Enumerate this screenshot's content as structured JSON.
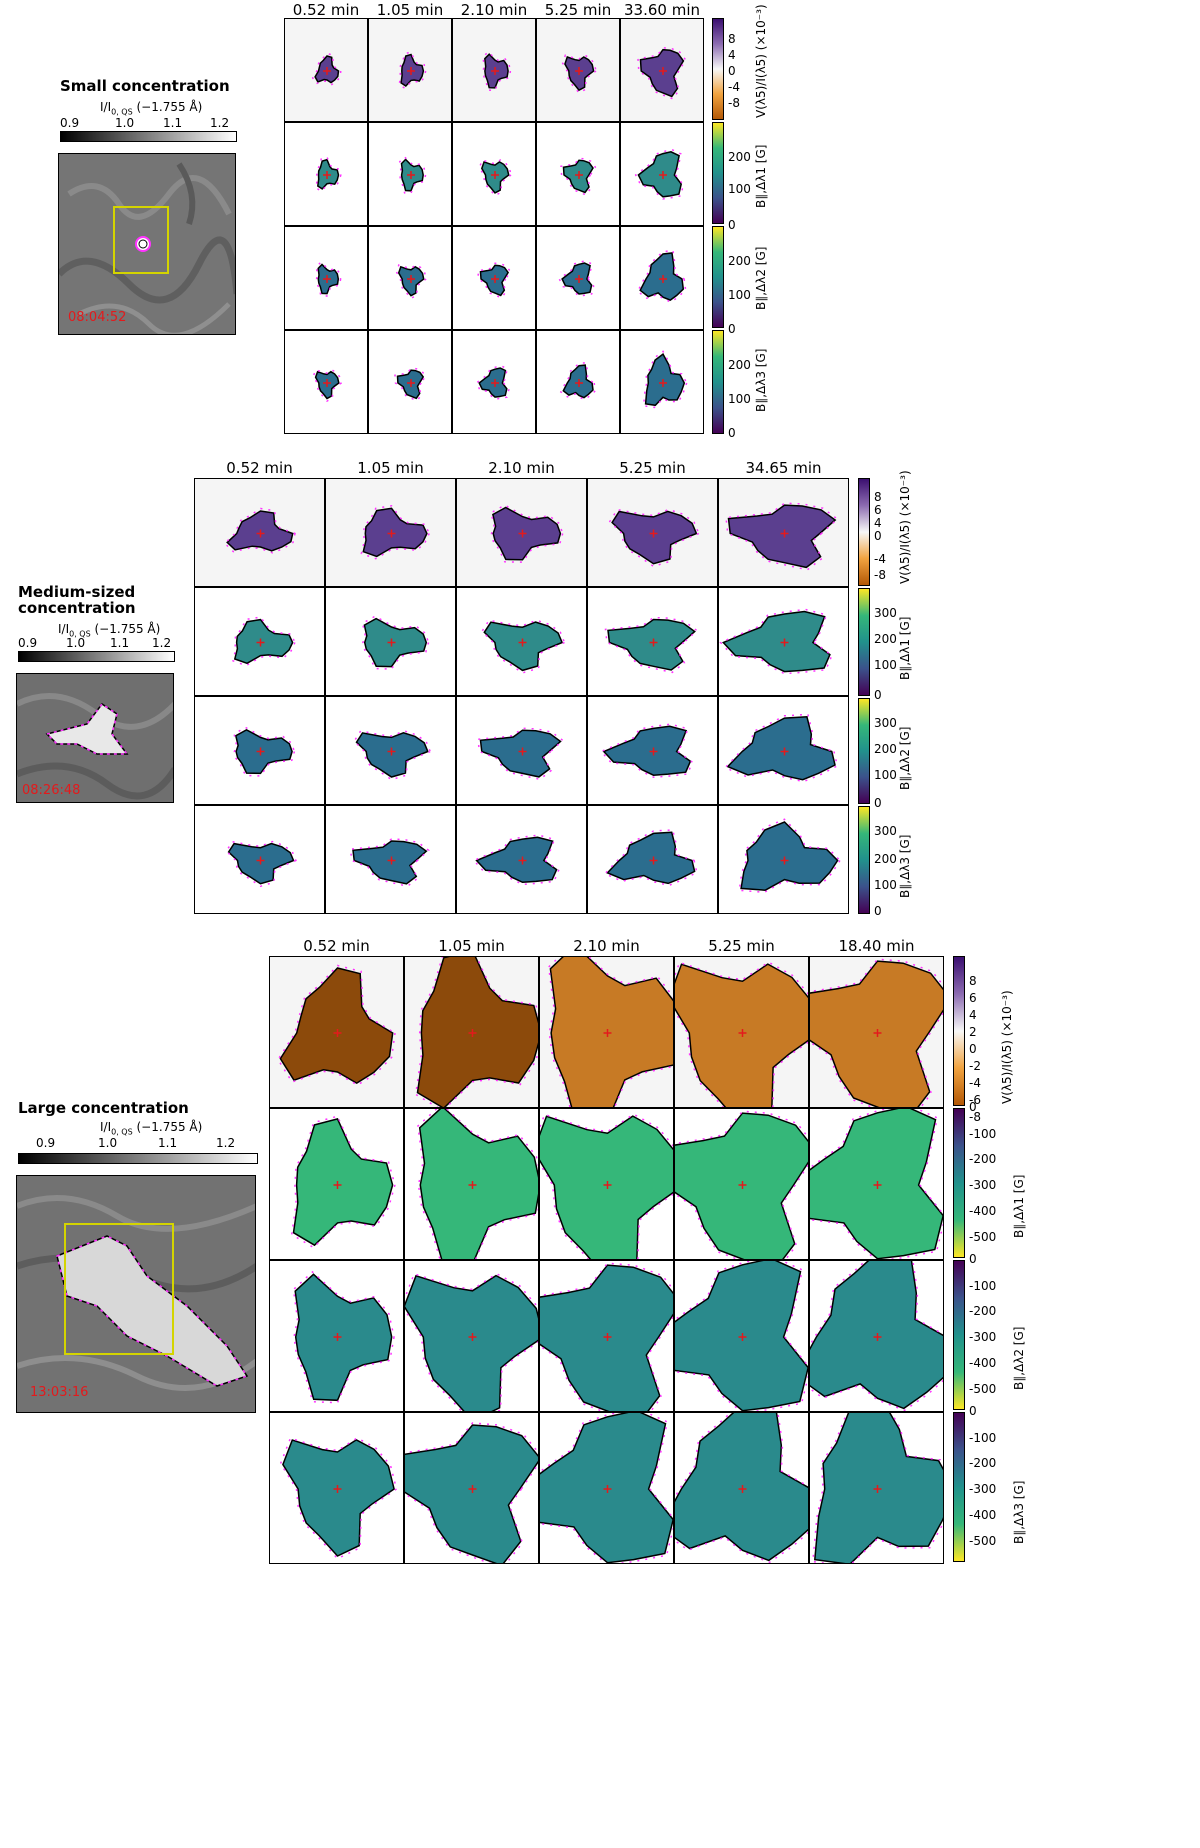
{
  "colors": {
    "contour_black": "#000000",
    "contour_magenta": "#ff33ff",
    "box_yellow": "#d4d400",
    "marker_red": "#e31a1c",
    "bg_grey": "#f5f5f5"
  },
  "context_colorbar": {
    "label": "I/I",
    "sub": "0, QS",
    "suffix": " (−1.755 Å)",
    "ticks": [
      "0.9",
      "1.0",
      "1.1",
      "1.2"
    ]
  },
  "small": {
    "title": "Small concentration",
    "timestamp": "08:04:52",
    "times": [
      "0.52 min",
      "1.05 min",
      "2.10 min",
      "5.25 min",
      "33.60 min"
    ],
    "cbar_v_ticks": [
      "8",
      "4",
      "0",
      "-4",
      "-8"
    ],
    "cbar_b_ticks": [
      "200",
      "100",
      "0"
    ],
    "cbar_b_ticks_last": [
      "200",
      "100",
      "0"
    ]
  },
  "medium": {
    "title_line1": "Medium-sized",
    "title_line2": "concentration",
    "timestamp": "08:26:48",
    "times": [
      "0.52 min",
      "1.05 min",
      "2.10 min",
      "5.25 min",
      "34.65 min"
    ],
    "cbar_v_ticks": [
      "8",
      "6",
      "4",
      "2",
      "0",
      "-4",
      "-8"
    ],
    "cbar_b_ticks": [
      "300",
      "200",
      "100",
      "0"
    ]
  },
  "large": {
    "title": "Large concentration",
    "timestamp": "13:03:16",
    "times": [
      "0.52 min",
      "1.05 min",
      "2.10 min",
      "5.25 min",
      "18.40 min"
    ],
    "cbar_v_ticks": [
      "8",
      "6",
      "4",
      "2",
      "0",
      "-2",
      "-4",
      "-6",
      "-8"
    ],
    "cbar_b_ticks": [
      "0",
      "-100",
      "-200",
      "-300",
      "-400",
      "-500"
    ]
  },
  "cbar_labels": {
    "v": "V(λ5)/I(λ5) (×10⁻³)",
    "b1": "B∥,Δλ1 [G]",
    "b2": "B∥,Δλ2 [G]",
    "b3": "B∥,Δλ3 [G]"
  }
}
